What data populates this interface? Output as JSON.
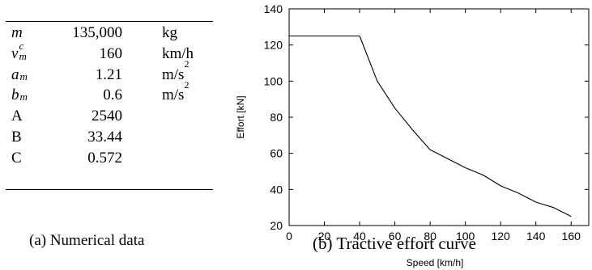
{
  "table": {
    "rows": [
      {
        "symbol": "m",
        "sub": "",
        "sup": "",
        "value": "135,000",
        "unit": "kg",
        "unit_sup": ""
      },
      {
        "symbol": "v",
        "sub": "m",
        "sup": "c",
        "value": "160",
        "unit": "km/h",
        "unit_sup": ""
      },
      {
        "symbol": "a",
        "sub": "m",
        "sup": "",
        "value": "1.21",
        "unit": "m/s",
        "unit_sup": "2"
      },
      {
        "symbol": "b",
        "sub": "m",
        "sup": "",
        "value": "0.6",
        "unit": "m/s",
        "unit_sup": "2"
      },
      {
        "symbol": "A",
        "sub": "",
        "sup": "",
        "value": "2540",
        "unit": "",
        "unit_sup": ""
      },
      {
        "symbol": "B",
        "sub": "",
        "sup": "",
        "value": "33.44",
        "unit": "",
        "unit_sup": ""
      },
      {
        "symbol": "C",
        "sub": "",
        "sup": "",
        "value": "0.572",
        "unit": "",
        "unit_sup": ""
      }
    ],
    "caption": "(a) Numerical data"
  },
  "chart_data": {
    "type": "line",
    "title": "",
    "xlabel": "Speed [km/h]",
    "ylabel": "Effort [kN]",
    "xlim": [
      0,
      170
    ],
    "ylim": [
      20,
      140
    ],
    "xticks": [
      0,
      20,
      40,
      60,
      80,
      100,
      120,
      140,
      160
    ],
    "yticks": [
      20,
      40,
      60,
      80,
      100,
      120,
      140
    ],
    "grid": false,
    "legend": "none",
    "series": [
      {
        "x": [
          0,
          40,
          50,
          60,
          70,
          80,
          90,
          100,
          110,
          120,
          130,
          140,
          150,
          160
        ],
        "y": [
          125,
          125,
          100,
          85,
          73,
          62,
          57,
          52,
          48,
          42,
          38,
          33,
          30,
          25
        ],
        "color": "#000000"
      }
    ],
    "caption": "(b) Tractive effort curve"
  }
}
